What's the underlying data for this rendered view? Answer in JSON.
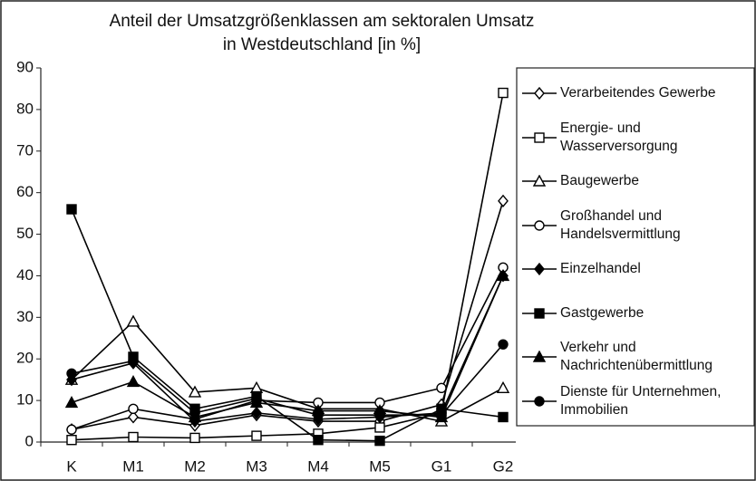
{
  "chart_data": {
    "type": "line",
    "title": [
      "Anteil der Umsatzgrößenklassen am sektoralen Umsatz",
      "in Westdeutschland [in %]"
    ],
    "categories": [
      "K",
      "M1",
      "M2",
      "M3",
      "M4",
      "M5",
      "G1",
      "G2"
    ],
    "ylim": [
      0,
      90
    ],
    "yticks": [
      0,
      10,
      20,
      30,
      40,
      50,
      60,
      70,
      80,
      90
    ],
    "grid": false,
    "legend": "right",
    "series": [
      {
        "name": "Verarbeitendes Gewerbe",
        "color": "#000000",
        "marker": "diamond-open",
        "values": [
          3,
          6,
          4,
          6.5,
          5,
          5,
          9,
          58
        ]
      },
      {
        "name": "Energie- und Wasserversorgung",
        "color": "#000000",
        "marker": "square-open",
        "values": [
          0.5,
          1.2,
          1,
          1.5,
          2,
          3.5,
          7,
          84
        ]
      },
      {
        "name": "Baugewerbe",
        "color": "#000000",
        "marker": "triangle-open",
        "values": [
          15,
          29,
          12,
          13,
          8,
          8,
          5,
          13
        ]
      },
      {
        "name": "Großhandel und Handelsvermittlung",
        "color": "#000000",
        "marker": "circle-open",
        "values": [
          3,
          8,
          5.5,
          10,
          9.5,
          9.5,
          13,
          42
        ]
      },
      {
        "name": "Einzelhandel",
        "color": "#000000",
        "marker": "diamond-filled",
        "values": [
          15,
          19,
          5,
          7,
          5.5,
          6,
          7,
          40
        ]
      },
      {
        "name": "Gastgewerbe",
        "color": "#000000",
        "marker": "square-filled",
        "values": [
          56,
          20.5,
          8,
          11,
          0.5,
          0.3,
          8,
          6
        ]
      },
      {
        "name": "Verkehr und Nachrichtenübermittlung",
        "color": "#000000",
        "marker": "triangle-filled",
        "values": [
          9.5,
          14.5,
          6,
          9.5,
          7.5,
          7.5,
          6,
          40
        ]
      },
      {
        "name": "Dienste für Unternehmen, Immobilien",
        "color": "#000000",
        "marker": "circle-filled",
        "values": [
          16.5,
          19.5,
          7,
          10.5,
          6.5,
          6.5,
          6.5,
          23.5
        ]
      }
    ]
  }
}
